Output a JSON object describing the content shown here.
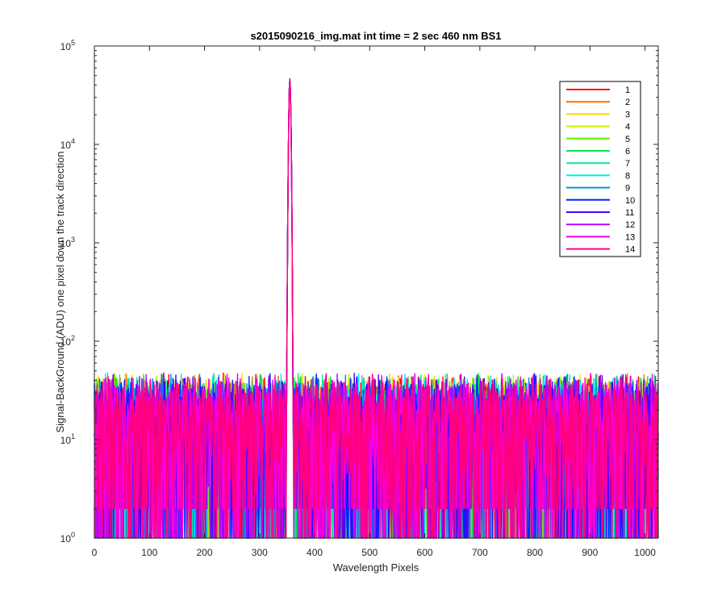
{
  "chart_data": {
    "type": "line",
    "title": "s2015090216_img.mat int time = 2 sec  460 nm BS1",
    "xlabel": "Wavelength Pixels",
    "ylabel": "Signal-BackGround (ADU) one pixel down the track direction",
    "x_range": [
      0,
      1024
    ],
    "xlim": [
      0,
      1024
    ],
    "ylim": [
      1,
      100000
    ],
    "y_scale": "log",
    "x_ticks": [
      0,
      100,
      200,
      300,
      400,
      500,
      600,
      700,
      800,
      900,
      1000
    ],
    "y_ticks": [
      {
        "value": 1,
        "base": "10",
        "exp": "0"
      },
      {
        "value": 10,
        "base": "10",
        "exp": "1"
      },
      {
        "value": 100,
        "base": "10",
        "exp": "2"
      },
      {
        "value": 1000,
        "base": "10",
        "exp": "3"
      },
      {
        "value": 10000,
        "base": "10",
        "exp": "4"
      },
      {
        "value": 100000,
        "base": "10",
        "exp": "5"
      }
    ],
    "grid": false,
    "legend_position": "top-right",
    "peak": {
      "x": 355,
      "y": 45000
    },
    "noise_band": [
      2,
      60
    ],
    "series": [
      {
        "name": "1",
        "color": "#ff0000"
      },
      {
        "name": "2",
        "color": "#ff6a00"
      },
      {
        "name": "3",
        "color": "#ffd400"
      },
      {
        "name": "4",
        "color": "#c8f000"
      },
      {
        "name": "5",
        "color": "#5ef000"
      },
      {
        "name": "6",
        "color": "#00e84a"
      },
      {
        "name": "7",
        "color": "#00e8a0"
      },
      {
        "name": "8",
        "color": "#00f0f0"
      },
      {
        "name": "9",
        "color": "#0090e0"
      },
      {
        "name": "10",
        "color": "#0020ff"
      },
      {
        "name": "11",
        "color": "#4a00ff"
      },
      {
        "name": "12",
        "color": "#b400ff"
      },
      {
        "name": "13",
        "color": "#ff00d8"
      },
      {
        "name": "14",
        "color": "#ff0080"
      }
    ]
  }
}
